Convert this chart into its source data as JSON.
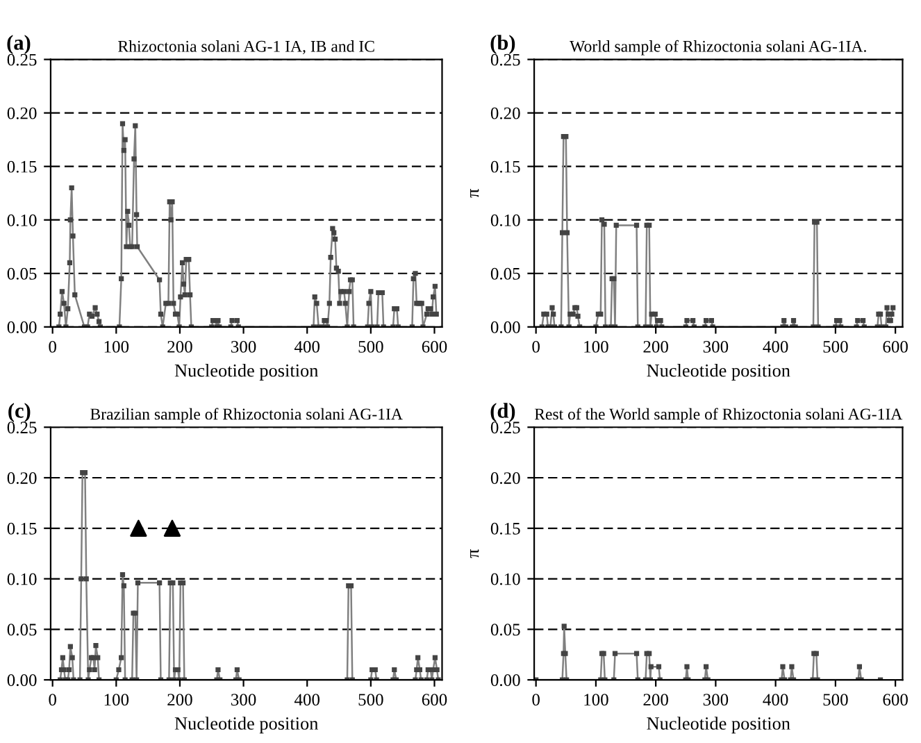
{
  "chart_data": [
    {
      "type": "line",
      "title": "Rhizoctonia solani AG-1 IA, IB and IC",
      "xlabel": "Nucleotide position",
      "annotations": [
        "(a)"
      ],
      "xlim": [
        -3,
        612
      ],
      "ylim": [
        0,
        0.25
      ],
      "xticks": [
        0,
        100,
        200,
        300,
        400,
        500,
        600
      ],
      "yticks": [
        {
          "value": 0,
          "label": "0.00"
        },
        {
          "value": 0.05,
          "label": "0.05"
        },
        {
          "value": 0.1,
          "label": "0.10"
        },
        {
          "value": 0.15,
          "label": "0.15"
        },
        {
          "value": 0.2,
          "label": "0.20"
        },
        {
          "value": 0.25,
          "label": "0.25"
        }
      ],
      "grid": "y",
      "marker": "square",
      "line_style": "solid",
      "series": [
        {
          "color": "#808080",
          "x": [
            10,
            12,
            15,
            18,
            21,
            24,
            27,
            28,
            30,
            32,
            35,
            50,
            55,
            58,
            62,
            67,
            70,
            73,
            75,
            105,
            108,
            110,
            112,
            114,
            116,
            118,
            120,
            122,
            125,
            128,
            130,
            132,
            133,
            168,
            170,
            173,
            178,
            182,
            184,
            186,
            188,
            190,
            193,
            196,
            199,
            201,
            204,
            206,
            208,
            210,
            214,
            216,
            218,
            250,
            252,
            256,
            258,
            260,
            262,
            280,
            282,
            290,
            292,
            410,
            412,
            415,
            418,
            425,
            427,
            430,
            432,
            435,
            437,
            440,
            442,
            444,
            446,
            449,
            451,
            453,
            458,
            460,
            463,
            466,
            468,
            471,
            473,
            495,
            497,
            500,
            502,
            510,
            512,
            518,
            520,
            535,
            537,
            541,
            543,
            565,
            567,
            570,
            572,
            575,
            577,
            580,
            582,
            588,
            590,
            594,
            596,
            598,
            601,
            603
          ],
          "values": [
            0,
            0.012,
            0.033,
            0.022,
            0,
            0.017,
            0.06,
            0.1,
            0.13,
            0.085,
            0.03,
            0,
            0,
            0.012,
            0.01,
            0.018,
            0.012,
            0.005,
            0,
            0,
            0.045,
            0.19,
            0.165,
            0.175,
            0.075,
            0.108,
            0.095,
            0.075,
            0.075,
            0.157,
            0.188,
            0.105,
            0.075,
            0.044,
            0.012,
            0,
            0.022,
            0.022,
            0.117,
            0.1,
            0.117,
            0.022,
            0.012,
            0.012,
            0,
            0.028,
            0.06,
            0.04,
            0.03,
            0.063,
            0.063,
            0.03,
            0,
            0,
            0.006,
            0.006,
            0,
            0.006,
            0,
            0,
            0.006,
            0.006,
            0,
            0,
            0.028,
            0.022,
            0,
            0,
            0.006,
            0.006,
            0,
            0.022,
            0.065,
            0.092,
            0.088,
            0.082,
            0.055,
            0.052,
            0.022,
            0.033,
            0.033,
            0.022,
            0,
            0.033,
            0.044,
            0.044,
            0,
            0,
            0.022,
            0.033,
            0,
            0,
            0.032,
            0.032,
            0,
            0,
            0.017,
            0.017,
            0,
            0,
            0.045,
            0.05,
            0.022,
            0.022,
            0.022,
            0.022,
            0,
            0.012,
            0.017,
            0.017,
            0.012,
            0.028,
            0.038,
            0.012
          ]
        }
      ]
    },
    {
      "type": "line",
      "title": "World sample of Rhizoctonia solani AG-1IA.",
      "xlabel": "Nucleotide position",
      "ylabel": "π",
      "annotations": [
        "(b)"
      ],
      "xlim": [
        -3,
        612
      ],
      "ylim": [
        0,
        0.25
      ],
      "xticks": [
        0,
        100,
        200,
        300,
        400,
        500,
        600
      ],
      "yticks": [
        {
          "value": 0,
          "label": "0.00"
        },
        {
          "value": 0.05,
          "label": "0.05"
        },
        {
          "value": 0.1,
          "label": "0.10"
        },
        {
          "value": 0.15,
          "label": "0.15"
        },
        {
          "value": 0.2,
          "label": "0.20"
        },
        {
          "value": 0.25,
          "label": "0.25"
        }
      ],
      "grid": "y",
      "marker": "square",
      "line_style": "solid",
      "series": [
        {
          "color": "#808080",
          "x": [
            10,
            13,
            18,
            20,
            24,
            27,
            29,
            31,
            42,
            44,
            46,
            50,
            52,
            55,
            57,
            62,
            65,
            68,
            70,
            73,
            100,
            104,
            108,
            110,
            114,
            116,
            125,
            127,
            130,
            132,
            134,
            168,
            170,
            183,
            185,
            189,
            191,
            193,
            199,
            201,
            203,
            208,
            210,
            250,
            252,
            262,
            264,
            282,
            284,
            293,
            295,
            412,
            414,
            417,
            428,
            430,
            433,
            463,
            465,
            469,
            471,
            500,
            502,
            507,
            509,
            535,
            537,
            546,
            548,
            570,
            572,
            575,
            577,
            584,
            586,
            588,
            590,
            592,
            594,
            596
          ],
          "values": [
            0,
            0.012,
            0.012,
            0,
            0,
            0.018,
            0.012,
            0,
            0,
            0.088,
            0.178,
            0.178,
            0.088,
            0,
            0.012,
            0.012,
            0.018,
            0.018,
            0.01,
            0,
            0,
            0.012,
            0.012,
            0.1,
            0.096,
            0,
            0,
            0.045,
            0.045,
            0,
            0.095,
            0.095,
            0,
            0,
            0.095,
            0.095,
            0,
            0.012,
            0.012,
            0,
            0.006,
            0.006,
            0,
            0,
            0.006,
            0.006,
            0,
            0,
            0.006,
            0.006,
            0,
            0,
            0.006,
            0,
            0,
            0.006,
            0,
            0,
            0.098,
            0.098,
            0,
            0,
            0.006,
            0.006,
            0,
            0,
            0.006,
            0.006,
            0,
            0,
            0.012,
            0.012,
            0,
            0,
            0.018,
            0.012,
            0.006,
            0.006,
            0.012,
            0.018
          ]
        }
      ]
    },
    {
      "type": "line",
      "title": "Brazilian sample of Rhizoctonia solani AG-1IA",
      "xlabel": "Nucleotide position",
      "annotations": [
        "(c)"
      ],
      "xlim": [
        -3,
        612
      ],
      "ylim": [
        0,
        0.25
      ],
      "xticks": [
        0,
        100,
        200,
        300,
        400,
        500,
        600
      ],
      "yticks": [
        {
          "value": 0,
          "label": "0.00"
        },
        {
          "value": 0.05,
          "label": "0.05"
        },
        {
          "value": 0.1,
          "label": "0.10"
        },
        {
          "value": 0.15,
          "label": "0.15"
        },
        {
          "value": 0.2,
          "label": "0.20"
        },
        {
          "value": 0.25,
          "label": "0.25"
        }
      ],
      "grid": "y",
      "marker": "square",
      "line_style": "solid",
      "series": [
        {
          "color": "#808080",
          "x": [
            12,
            14,
            16,
            18,
            20,
            24,
            26,
            28,
            31,
            33,
            43,
            45,
            47,
            51,
            53,
            56,
            58,
            61,
            64,
            66,
            68,
            71,
            73,
            100,
            104,
            108,
            110,
            112,
            114,
            125,
            127,
            130,
            132,
            134,
            168,
            170,
            183,
            185,
            189,
            191,
            193,
            197,
            199,
            201,
            205,
            207,
            258,
            260,
            263,
            288,
            290,
            293,
            463,
            465,
            469,
            471,
            500,
            502,
            507,
            509,
            535,
            537,
            540,
            570,
            572,
            574,
            577,
            579,
            588,
            590,
            594,
            596,
            598,
            601,
            604,
            606
          ],
          "values": [
            0,
            0.01,
            0.022,
            0.01,
            0,
            0,
            0.01,
            0.033,
            0.022,
            0,
            0,
            0.1,
            0.205,
            0.205,
            0.1,
            0,
            0.01,
            0.022,
            0.022,
            0.01,
            0.034,
            0.022,
            0,
            0,
            0.01,
            0.022,
            0.104,
            0.093,
            0,
            0,
            0.066,
            0.066,
            0,
            0.096,
            0.096,
            0,
            0,
            0.096,
            0.096,
            0,
            0.01,
            0.01,
            0,
            0.096,
            0.096,
            0,
            0,
            0.01,
            0,
            0,
            0.01,
            0,
            0,
            0.093,
            0.093,
            0,
            0,
            0.01,
            0.01,
            0,
            0,
            0.01,
            0,
            0,
            0.01,
            0.022,
            0.01,
            0,
            0,
            0.01,
            0.01,
            0,
            0.01,
            0.022,
            0.01,
            0
          ]
        },
        {
          "type": "scatter",
          "color": "#000000",
          "marker": "triangle",
          "x": [
            135,
            188
          ],
          "values": [
            0.15,
            0.15
          ]
        }
      ]
    },
    {
      "type": "line",
      "title": "Rest of the World sample of Rhizoctonia solani AG-1IA",
      "xlabel": "Nucleotide position",
      "ylabel": "π",
      "annotations": [
        "(d)"
      ],
      "xlim": [
        -3,
        612
      ],
      "ylim": [
        0,
        0.25
      ],
      "xticks": [
        0,
        100,
        200,
        300,
        400,
        500,
        600
      ],
      "yticks": [
        {
          "value": 0,
          "label": "0.00"
        },
        {
          "value": 0.05,
          "label": "0.05"
        },
        {
          "value": 0.1,
          "label": "0.10"
        },
        {
          "value": 0.15,
          "label": "0.15"
        },
        {
          "value": 0.2,
          "label": "0.20"
        },
        {
          "value": 0.25,
          "label": "0.25"
        }
      ],
      "grid": "y",
      "marker": "square",
      "line_style": "solid",
      "series": [
        {
          "color": "#808080",
          "x": [
            0,
            44,
            46,
            47,
            49,
            51,
            108,
            110,
            113,
            115,
            130,
            132,
            168,
            170,
            183,
            185,
            189,
            191,
            192,
            205,
            207,
            250,
            252,
            254,
            282,
            284,
            287,
            410,
            412,
            415,
            425,
            427,
            430,
            462,
            464,
            468,
            470,
            538,
            540,
            543,
            575
          ],
          "values": [
            0,
            0,
            0.026,
            0.053,
            0.026,
            0,
            0,
            0.026,
            0.026,
            0,
            0,
            0.026,
            0.026,
            0,
            0,
            0.026,
            0.026,
            0,
            0.013,
            0.013,
            0,
            0,
            0.013,
            0,
            0,
            0.013,
            0,
            0,
            0.013,
            0,
            0,
            0.013,
            0,
            0,
            0.026,
            0.026,
            0,
            0,
            0.013,
            0,
            0
          ]
        }
      ]
    }
  ]
}
